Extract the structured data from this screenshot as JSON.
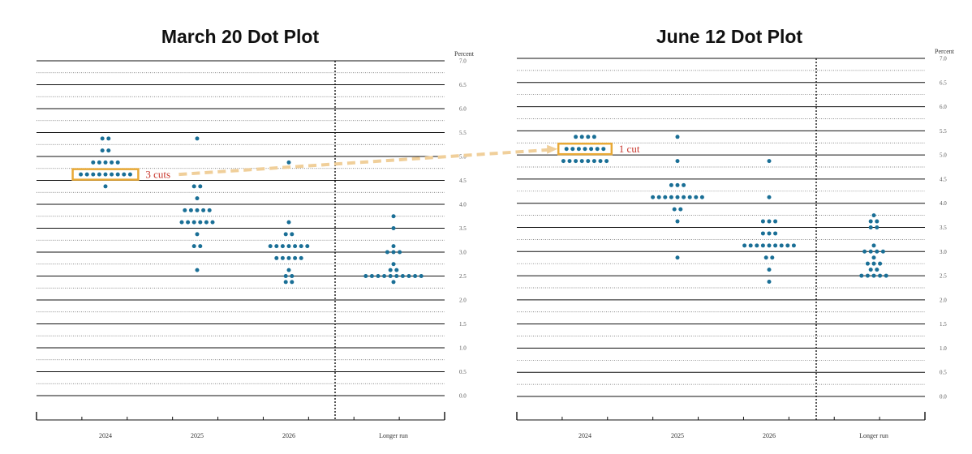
{
  "chart_data": [
    {
      "type": "scatter",
      "title": "March 20 Dot Plot",
      "ylabel": "Percent",
      "ylim": [
        0,
        7
      ],
      "yticks": [
        "0.0",
        "0.5",
        "1.0",
        "1.5",
        "2.0",
        "2.5",
        "3.0",
        "3.5",
        "4.0",
        "4.5",
        "5.0",
        "5.5",
        "6.0",
        "6.5",
        "7.0"
      ],
      "categories": [
        "2024",
        "2025",
        "2026",
        "Longer run"
      ],
      "dots": [
        {
          "x": "2024",
          "rates": [
            {
              "y": 5.375,
              "n": 2
            },
            {
              "y": 5.125,
              "n": 2
            },
            {
              "y": 4.875,
              "n": 5
            },
            {
              "y": 4.625,
              "n": 9
            },
            {
              "y": 4.375,
              "n": 1
            }
          ]
        },
        {
          "x": "2025",
          "rates": [
            {
              "y": 5.375,
              "n": 1
            },
            {
              "y": 4.375,
              "n": 2
            },
            {
              "y": 4.125,
              "n": 1
            },
            {
              "y": 3.875,
              "n": 5
            },
            {
              "y": 3.625,
              "n": 6
            },
            {
              "y": 3.375,
              "n": 1
            },
            {
              "y": 3.125,
              "n": 2
            },
            {
              "y": 2.625,
              "n": 1
            }
          ]
        },
        {
          "x": "2026",
          "rates": [
            {
              "y": 4.875,
              "n": 1
            },
            {
              "y": 3.625,
              "n": 1
            },
            {
              "y": 3.375,
              "n": 2
            },
            {
              "y": 3.125,
              "n": 7
            },
            {
              "y": 2.875,
              "n": 5
            },
            {
              "y": 2.625,
              "n": 1
            },
            {
              "y": 2.5,
              "n": 2
            },
            {
              "y": 2.375,
              "n": 2
            }
          ]
        },
        {
          "x": "Longer run",
          "rates": [
            {
              "y": 3.75,
              "n": 1
            },
            {
              "y": 3.5,
              "n": 1
            },
            {
              "y": 3.125,
              "n": 1
            },
            {
              "y": 3.0,
              "n": 3
            },
            {
              "y": 2.75,
              "n": 1
            },
            {
              "y": 2.625,
              "n": 2
            },
            {
              "y": 2.5,
              "n": 10
            },
            {
              "y": 2.375,
              "n": 1
            }
          ]
        }
      ],
      "highlight": {
        "category": "2024",
        "y": 4.625,
        "label": "3 cuts"
      }
    },
    {
      "type": "scatter",
      "title": "June 12 Dot Plot",
      "ylabel": "Percent",
      "ylim": [
        0,
        7
      ],
      "yticks": [
        "0.0",
        "0.5",
        "1.0",
        "1.5",
        "2.0",
        "2.5",
        "3.0",
        "3.5",
        "4.0",
        "4.5",
        "5.0",
        "5.5",
        "6.0",
        "6.5",
        "7.0"
      ],
      "categories": [
        "2024",
        "2025",
        "2026",
        "Longer run"
      ],
      "dots": [
        {
          "x": "2024",
          "rates": [
            {
              "y": 5.375,
              "n": 4
            },
            {
              "y": 5.125,
              "n": 7
            },
            {
              "y": 4.875,
              "n": 8
            }
          ]
        },
        {
          "x": "2025",
          "rates": [
            {
              "y": 5.375,
              "n": 1
            },
            {
              "y": 4.875,
              "n": 1
            },
            {
              "y": 4.375,
              "n": 3
            },
            {
              "y": 4.125,
              "n": 9
            },
            {
              "y": 3.875,
              "n": 2
            },
            {
              "y": 3.625,
              "n": 1
            },
            {
              "y": 2.875,
              "n": 1
            }
          ]
        },
        {
          "x": "2026",
          "rates": [
            {
              "y": 4.875,
              "n": 1
            },
            {
              "y": 4.125,
              "n": 1
            },
            {
              "y": 3.625,
              "n": 3
            },
            {
              "y": 3.375,
              "n": 3
            },
            {
              "y": 3.125,
              "n": 9
            },
            {
              "y": 2.875,
              "n": 2
            },
            {
              "y": 2.625,
              "n": 1
            },
            {
              "y": 2.375,
              "n": 1
            }
          ]
        },
        {
          "x": "Longer run",
          "rates": [
            {
              "y": 3.75,
              "n": 1
            },
            {
              "y": 3.625,
              "n": 2
            },
            {
              "y": 3.5,
              "n": 2
            },
            {
              "y": 3.125,
              "n": 1
            },
            {
              "y": 3.0,
              "n": 4
            },
            {
              "y": 2.875,
              "n": 1
            },
            {
              "y": 2.75,
              "n": 3
            },
            {
              "y": 2.625,
              "n": 2
            },
            {
              "y": 2.5,
              "n": 5
            }
          ]
        }
      ],
      "highlight": {
        "category": "2024",
        "y": 5.125,
        "label": "1 cut"
      }
    }
  ],
  "colors": {
    "dot": "#1a6f96",
    "highlight_box": "#e8a936",
    "arrow": "#f0cf9a",
    "annotation_text": "#c8352b",
    "axis": "#111111",
    "minor_grid": "#666666"
  }
}
